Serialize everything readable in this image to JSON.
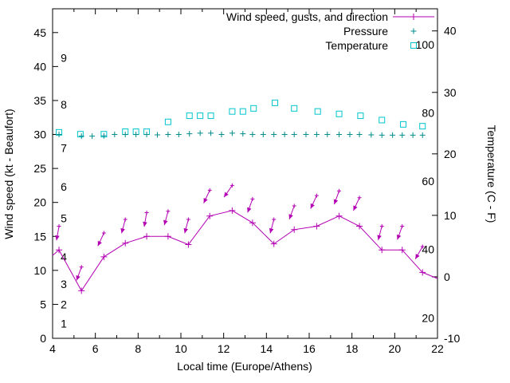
{
  "chart_data": {
    "type": "line",
    "title": "",
    "xlabel": "Local time (Europe/Athens)",
    "ylabel_left": "Wind speed (kt - Beaufort)",
    "ylabel_right": "Temperature (C - F)",
    "x_range": [
      4,
      22
    ],
    "x_ticks": [
      4,
      6,
      8,
      10,
      12,
      14,
      16,
      18,
      20,
      22
    ],
    "x_minor_ticks": [
      5,
      7,
      9,
      11,
      13,
      15,
      17,
      19,
      21
    ],
    "y_left_range": [
      0,
      48.5
    ],
    "y_left_ticks": [
      0,
      5,
      10,
      15,
      20,
      25,
      30,
      35,
      40,
      45
    ],
    "y_right_range": [
      -10,
      43.6
    ],
    "y_right_ticks": [
      -10,
      0,
      10,
      20,
      30,
      40
    ],
    "grid": false,
    "legend_position": "top-right-inside",
    "beaufort_scale_labels": [
      {
        "label": "1",
        "kt": 2.2
      },
      {
        "label": "2",
        "kt": 5.0
      },
      {
        "label": "3",
        "kt": 8.0
      },
      {
        "label": "4",
        "kt": 12.0
      },
      {
        "label": "5",
        "kt": 17.7
      },
      {
        "label": "6",
        "kt": 22.3
      },
      {
        "label": "7",
        "kt": 28.0
      },
      {
        "label": "8",
        "kt": 34.4
      },
      {
        "label": "9",
        "kt": 41.3
      }
    ],
    "fahrenheit_scale_labels": [
      {
        "label": "20",
        "f": 20
      },
      {
        "label": "40",
        "f": 40
      },
      {
        "label": "60",
        "f": 60
      },
      {
        "label": "80",
        "f": 80
      },
      {
        "label": "100",
        "f": 100
      }
    ],
    "legend": [
      {
        "label": "Wind speed, gusts, and direction",
        "marker": "line-plus",
        "color": "#b300b3"
      },
      {
        "label": "Pressure",
        "marker": "plus",
        "color": "#008b8b"
      },
      {
        "label": "Temperature",
        "marker": "square",
        "color": "#00c5cd"
      }
    ],
    "series": {
      "wind": {
        "name": "Wind speed, gusts, and direction",
        "color": "#b300b3",
        "x": [
          4.0,
          4.3,
          5.35,
          6.4,
          7.4,
          8.4,
          9.4,
          10.35,
          11.35,
          12.4,
          13.35,
          14.35,
          15.3,
          16.35,
          17.4,
          18.35,
          19.4,
          20.35,
          21.3,
          22.0
        ],
        "speed_kt": [
          12.2,
          13,
          7,
          12,
          14,
          15,
          15,
          13.8,
          18,
          18.8,
          17,
          13.9,
          16,
          16.5,
          18,
          16.5,
          13,
          13,
          9.7,
          8.8
        ],
        "gust_kt": [
          null,
          16.5,
          10.5,
          15.5,
          17.5,
          18.5,
          18.7,
          17.5,
          21.8,
          22.5,
          20.5,
          17.5,
          19.5,
          21,
          21.7,
          20.7,
          16.5,
          16.5,
          13.5,
          null
        ],
        "dir_deg": [
          null,
          190,
          200,
          205,
          195,
          190,
          195,
          195,
          205,
          215,
          200,
          195,
          200,
          205,
          200,
          205,
          195,
          200,
          210,
          null
        ]
      },
      "pressure": {
        "name": "Pressure",
        "color": "#008b8b",
        "x": [
          4.3,
          5.35,
          5.85,
          6.4,
          6.9,
          7.4,
          7.9,
          8.4,
          8.9,
          9.4,
          9.9,
          10.4,
          10.9,
          11.4,
          11.9,
          12.4,
          12.9,
          13.35,
          13.85,
          14.35,
          14.85,
          15.3,
          15.85,
          16.35,
          16.85,
          17.4,
          17.9,
          18.35,
          18.9,
          19.4,
          19.9,
          20.35,
          20.85,
          21.3
        ],
        "values_inhg": [
          30.0,
          29.75,
          29.75,
          29.8,
          30.0,
          30.0,
          30.0,
          30.0,
          29.95,
          30.0,
          30.0,
          30.1,
          30.2,
          30.2,
          30.0,
          30.2,
          30.1,
          30.0,
          30.0,
          30.0,
          30.0,
          30.0,
          30.0,
          30.0,
          30.0,
          30.0,
          30.0,
          30.0,
          29.95,
          29.9,
          29.9,
          29.9,
          29.9,
          29.9
        ]
      },
      "temperature": {
        "name": "Temperature",
        "color": "#00c5cd",
        "x": [
          4.3,
          5.3,
          6.4,
          7.4,
          7.9,
          8.4,
          9.4,
          10.4,
          10.9,
          11.4,
          12.4,
          12.9,
          13.4,
          14.4,
          15.3,
          16.4,
          17.4,
          18.4,
          19.4,
          20.4,
          21.3
        ],
        "values_c": [
          23.5,
          23.2,
          23.2,
          23.6,
          23.6,
          23.6,
          25.2,
          26.2,
          26.2,
          26.2,
          26.9,
          26.9,
          27.4,
          28.3,
          27.4,
          26.9,
          26.5,
          26.2,
          25.5,
          24.8,
          24.5
        ]
      }
    }
  }
}
